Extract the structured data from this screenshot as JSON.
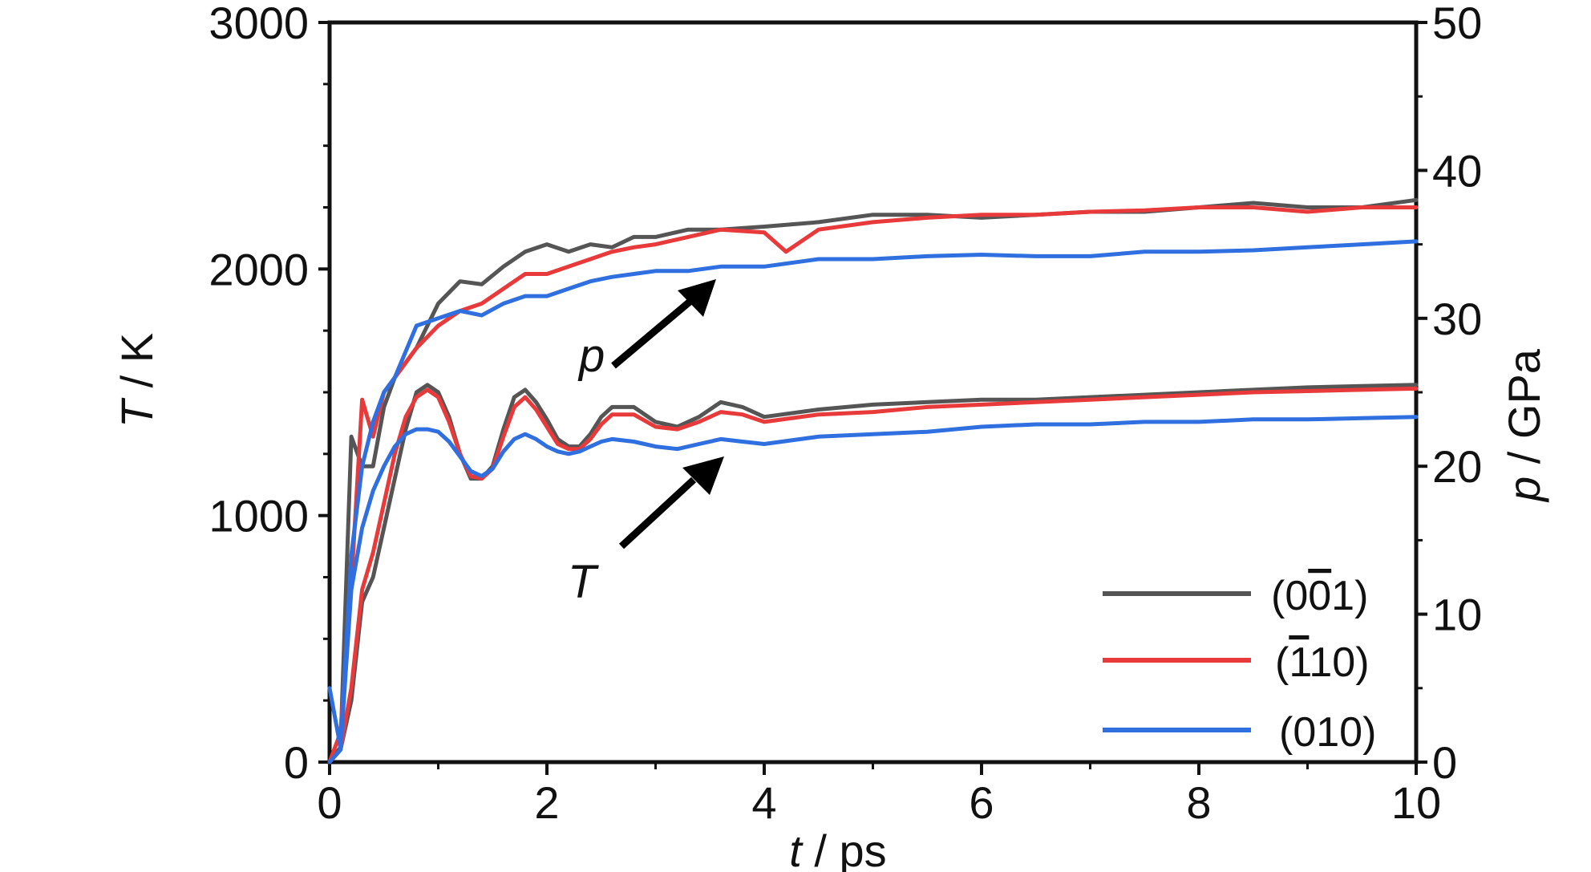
{
  "chart_data": {
    "type": "line",
    "xlabel": {
      "var": "t",
      "unit": " / ps"
    },
    "ylabel_left": {
      "var": "T",
      "unit": " / K"
    },
    "ylabel_right": {
      "var": "p",
      "unit": " / GPa"
    },
    "xlim": [
      0,
      10
    ],
    "ylim_left": [
      0,
      3000
    ],
    "ylim_right": [
      0,
      50
    ],
    "x_ticks": [
      0,
      2,
      4,
      6,
      8,
      10
    ],
    "y_ticks_left": [
      0,
      1000,
      2000,
      3000
    ],
    "y_ticks_right": [
      0,
      10,
      20,
      30,
      40,
      50
    ],
    "grid": false,
    "legend_position": "bottom-right",
    "annotations": [
      {
        "text": "p",
        "points_to": "pressure curves"
      },
      {
        "text": "T",
        "points_to": "temperature curves"
      }
    ],
    "series": [
      {
        "name": "(001)",
        "label_main": "(0",
        "label_bar": "0",
        "label_end": "1)",
        "color": "#555555",
        "quantity": "p",
        "axis": "right",
        "x": [
          0,
          0.1,
          0.2,
          0.3,
          0.4,
          0.5,
          0.6,
          0.8,
          1.0,
          1.2,
          1.4,
          1.6,
          1.8,
          2.0,
          2.2,
          2.4,
          2.6,
          2.8,
          3.0,
          3.3,
          3.6,
          4.0,
          4.5,
          5.0,
          5.5,
          6.0,
          6.5,
          7.0,
          7.5,
          8.0,
          8.5,
          9.0,
          9.5,
          10.0
        ],
        "values": [
          0,
          1,
          22,
          20,
          20,
          24,
          26,
          28,
          31,
          32.5,
          32.3,
          33.5,
          34.5,
          35,
          34.5,
          35,
          34.8,
          35.5,
          35.5,
          36,
          36,
          36.2,
          36.5,
          37,
          37,
          36.8,
          37,
          37.2,
          37.2,
          37.5,
          37.8,
          37.5,
          37.5,
          38
        ]
      },
      {
        "name": "(11̄0)",
        "label_main": "(",
        "label_bar": "1",
        "label_end": "10)",
        "color": "#e83a3a",
        "quantity": "p",
        "axis": "right",
        "x": [
          0,
          0.1,
          0.2,
          0.3,
          0.4,
          0.5,
          0.6,
          0.8,
          1.0,
          1.2,
          1.4,
          1.6,
          1.8,
          2.0,
          2.2,
          2.4,
          2.6,
          2.8,
          3.0,
          3.3,
          3.6,
          4.0,
          4.2,
          4.5,
          5.0,
          5.5,
          6.0,
          6.5,
          7.0,
          7.5,
          8.0,
          8.5,
          9.0,
          9.5,
          10.0
        ],
        "values": [
          0,
          2,
          12,
          24.5,
          22,
          25,
          26,
          28,
          29.5,
          30.5,
          31,
          32,
          33,
          33,
          33.5,
          34,
          34.5,
          34.8,
          35,
          35.5,
          36,
          35.8,
          34.5,
          36,
          36.5,
          36.8,
          37,
          37,
          37.2,
          37.3,
          37.5,
          37.5,
          37.2,
          37.5,
          37.5
        ]
      },
      {
        "name": "(010)",
        "label_main": "(010)",
        "label_bar": "",
        "label_end": "",
        "color": "#2f6fe0",
        "quantity": "p",
        "axis": "right",
        "x": [
          0,
          0.1,
          0.2,
          0.3,
          0.4,
          0.5,
          0.6,
          0.8,
          1.0,
          1.2,
          1.4,
          1.6,
          1.8,
          2.0,
          2.2,
          2.4,
          2.6,
          2.8,
          3.0,
          3.3,
          3.6,
          4.0,
          4.5,
          5.0,
          5.5,
          6.0,
          6.5,
          7.0,
          7.5,
          8.0,
          8.5,
          9.0,
          9.5,
          10.0
        ],
        "values": [
          5,
          1,
          14,
          20,
          23,
          25,
          26,
          29.5,
          30,
          30.5,
          30.2,
          31,
          31.5,
          31.5,
          32,
          32.5,
          32.8,
          33,
          33.2,
          33.2,
          33.5,
          33.5,
          34,
          34,
          34.2,
          34.3,
          34.2,
          34.2,
          34.5,
          34.5,
          34.6,
          34.8,
          35,
          35.2
        ]
      },
      {
        "name": "(001)",
        "color": "#555555",
        "quantity": "T",
        "axis": "left",
        "x": [
          0,
          0.1,
          0.2,
          0.3,
          0.4,
          0.5,
          0.6,
          0.7,
          0.8,
          0.9,
          1.0,
          1.1,
          1.2,
          1.3,
          1.4,
          1.5,
          1.6,
          1.7,
          1.8,
          1.9,
          2.0,
          2.1,
          2.2,
          2.3,
          2.4,
          2.5,
          2.6,
          2.8,
          3.0,
          3.2,
          3.4,
          3.6,
          3.8,
          4.0,
          4.5,
          5.0,
          5.5,
          6.0,
          6.5,
          7.0,
          7.5,
          8.0,
          8.5,
          9.0,
          9.5,
          10.0
        ],
        "values": [
          0,
          50,
          250,
          650,
          750,
          950,
          1150,
          1350,
          1500,
          1530,
          1500,
          1400,
          1250,
          1150,
          1150,
          1200,
          1350,
          1480,
          1510,
          1460,
          1390,
          1310,
          1280,
          1280,
          1330,
          1400,
          1440,
          1440,
          1380,
          1360,
          1400,
          1460,
          1440,
          1400,
          1430,
          1450,
          1460,
          1470,
          1470,
          1480,
          1490,
          1500,
          1510,
          1520,
          1525,
          1530
        ]
      },
      {
        "name": "(11̄0)",
        "color": "#e83a3a",
        "quantity": "T",
        "axis": "left",
        "x": [
          0,
          0.1,
          0.2,
          0.3,
          0.4,
          0.5,
          0.6,
          0.7,
          0.8,
          0.9,
          1.0,
          1.1,
          1.2,
          1.3,
          1.4,
          1.5,
          1.6,
          1.7,
          1.8,
          1.9,
          2.0,
          2.1,
          2.2,
          2.3,
          2.4,
          2.5,
          2.6,
          2.8,
          3.0,
          3.2,
          3.4,
          3.6,
          3.8,
          4.0,
          4.5,
          5.0,
          5.5,
          6.0,
          6.5,
          7.0,
          7.5,
          8.0,
          8.5,
          9.0,
          9.5,
          10.0
        ],
        "values": [
          0,
          50,
          300,
          700,
          850,
          1050,
          1250,
          1400,
          1480,
          1510,
          1480,
          1380,
          1250,
          1160,
          1150,
          1190,
          1320,
          1440,
          1480,
          1430,
          1360,
          1290,
          1270,
          1270,
          1310,
          1370,
          1410,
          1410,
          1360,
          1350,
          1380,
          1420,
          1410,
          1380,
          1410,
          1420,
          1440,
          1450,
          1460,
          1470,
          1480,
          1490,
          1500,
          1505,
          1510,
          1515
        ]
      },
      {
        "name": "(010)",
        "color": "#2f6fe0",
        "quantity": "T",
        "axis": "left",
        "x": [
          0,
          0.1,
          0.2,
          0.3,
          0.4,
          0.5,
          0.6,
          0.7,
          0.8,
          0.9,
          1.0,
          1.1,
          1.2,
          1.3,
          1.4,
          1.5,
          1.6,
          1.7,
          1.8,
          1.9,
          2.0,
          2.1,
          2.2,
          2.3,
          2.4,
          2.5,
          2.6,
          2.8,
          3.0,
          3.2,
          3.4,
          3.6,
          3.8,
          4.0,
          4.5,
          5.0,
          5.5,
          6.0,
          6.5,
          7.0,
          7.5,
          8.0,
          8.5,
          9.0,
          9.5,
          10.0
        ],
        "values": [
          0,
          50,
          700,
          950,
          1100,
          1200,
          1280,
          1330,
          1350,
          1350,
          1340,
          1300,
          1240,
          1180,
          1160,
          1190,
          1260,
          1310,
          1330,
          1310,
          1280,
          1260,
          1250,
          1260,
          1280,
          1300,
          1310,
          1300,
          1280,
          1270,
          1290,
          1310,
          1300,
          1290,
          1320,
          1330,
          1340,
          1360,
          1370,
          1370,
          1380,
          1380,
          1390,
          1390,
          1395,
          1400
        ]
      }
    ]
  }
}
